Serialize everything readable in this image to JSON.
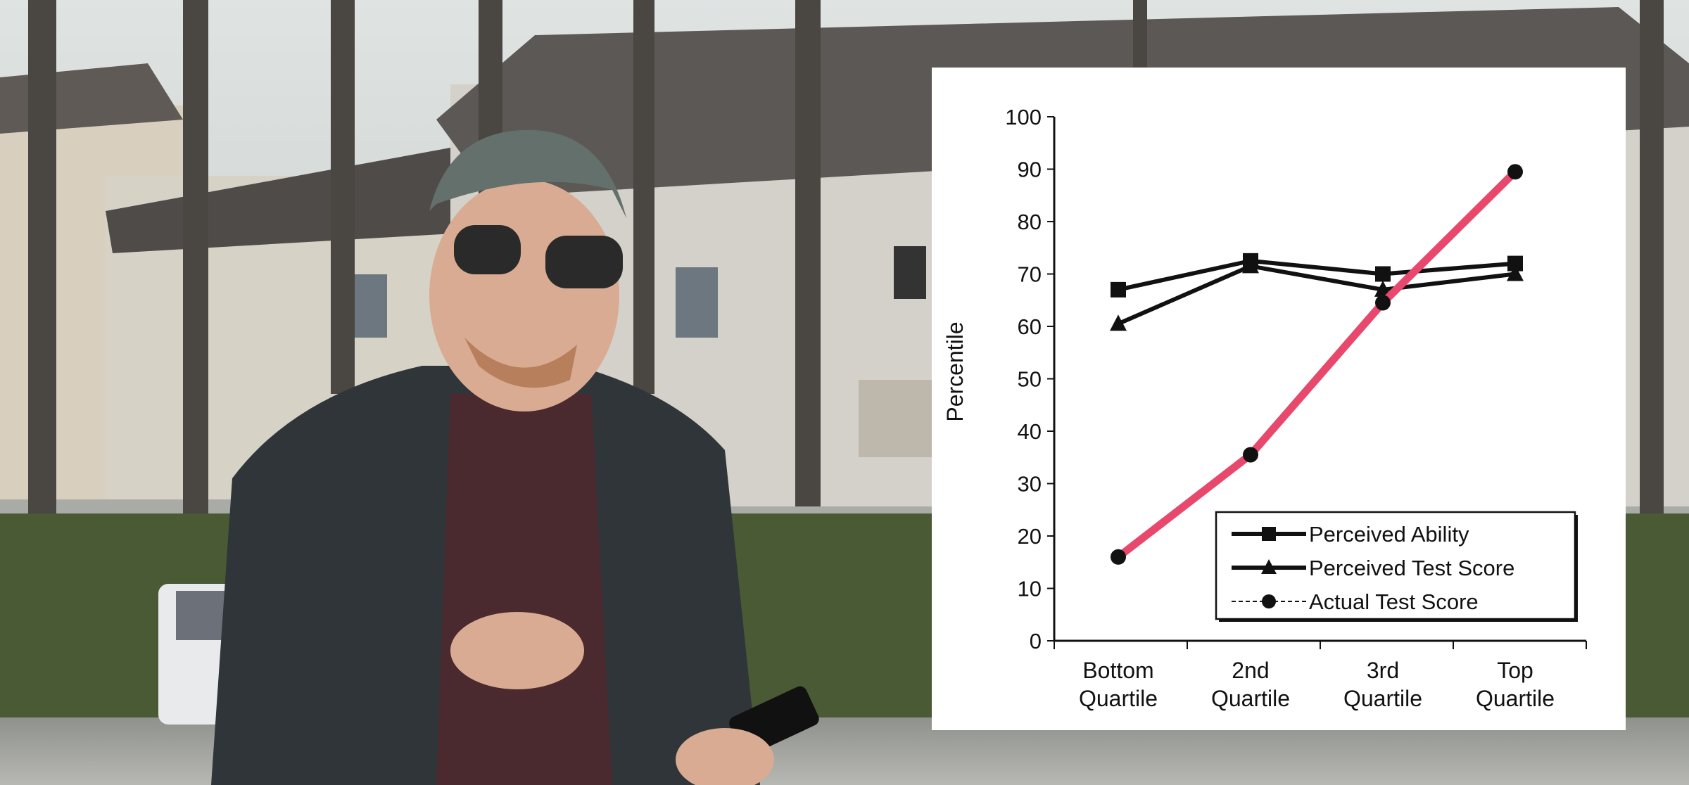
{
  "video": {
    "scene_description_icon": "outdoor-scene-with-presenter"
  },
  "chart_data": {
    "type": "line",
    "title": "",
    "ylabel": "Percentile",
    "xlabel": "",
    "categories": [
      [
        "Bottom",
        "Quartile"
      ],
      [
        "2nd",
        "Quartile"
      ],
      [
        "3rd",
        "Quartile"
      ],
      [
        "Top",
        "Quartile"
      ]
    ],
    "ylim": [
      0,
      100
    ],
    "yticks": [
      0,
      10,
      20,
      30,
      40,
      50,
      60,
      70,
      80,
      90,
      100
    ],
    "grid": false,
    "legend_position": "bottom-right",
    "series": [
      {
        "name": "Perceived Ability",
        "marker": "square",
        "color": "#111111",
        "values": [
          67,
          72.5,
          70,
          72
        ]
      },
      {
        "name": "Perceived Test Score",
        "marker": "triangle",
        "color": "#111111",
        "values": [
          60.5,
          71.5,
          67,
          70
        ]
      },
      {
        "name": "Actual Test Score",
        "marker": "circle",
        "color": "#e8486b",
        "values": [
          16,
          35.5,
          64.5,
          89.5
        ]
      }
    ]
  }
}
